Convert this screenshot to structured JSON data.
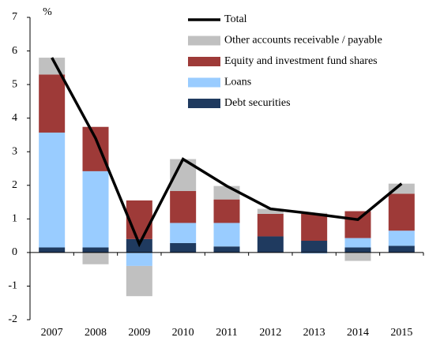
{
  "chart_data": {
    "type": "bar",
    "stacked": true,
    "y_label": "%",
    "categories": [
      "2007",
      "2008",
      "2009",
      "2010",
      "2011",
      "2012",
      "2013",
      "2014",
      "2015"
    ],
    "series": [
      {
        "name": "Debt securities",
        "color": "#1f3a5f",
        "values": [
          0.15,
          0.15,
          0.4,
          0.28,
          0.18,
          0.48,
          0.35,
          0.15,
          0.2
        ]
      },
      {
        "name": "Loans",
        "color": "#99ccff",
        "values": [
          3.42,
          2.27,
          -0.4,
          0.6,
          0.7,
          0,
          -0.03,
          0.28,
          0.45
        ]
      },
      {
        "name": "Equity and investment fund shares",
        "color": "#9e3a38",
        "values": [
          1.73,
          1.32,
          1.15,
          0.95,
          0.7,
          0.67,
          0.8,
          0.8,
          1.1
        ]
      },
      {
        "name": "Other accounts receivable / payable",
        "color": "#c0c0c0",
        "values": [
          0.5,
          -0.35,
          -0.9,
          0.95,
          0.4,
          0.15,
          0.03,
          -0.25,
          0.3
        ]
      },
      {
        "name": "Total",
        "color": "#000000",
        "type": "line",
        "values": [
          5.8,
          3.4,
          0.25,
          2.78,
          1.98,
          1.3,
          1.15,
          0.98,
          2.05
        ]
      }
    ],
    "ylim": [
      -2,
      7
    ],
    "yticks": [
      -2,
      -1,
      0,
      1,
      2,
      3,
      4,
      5,
      6,
      7
    ],
    "grid": false,
    "legend": "top-right"
  }
}
